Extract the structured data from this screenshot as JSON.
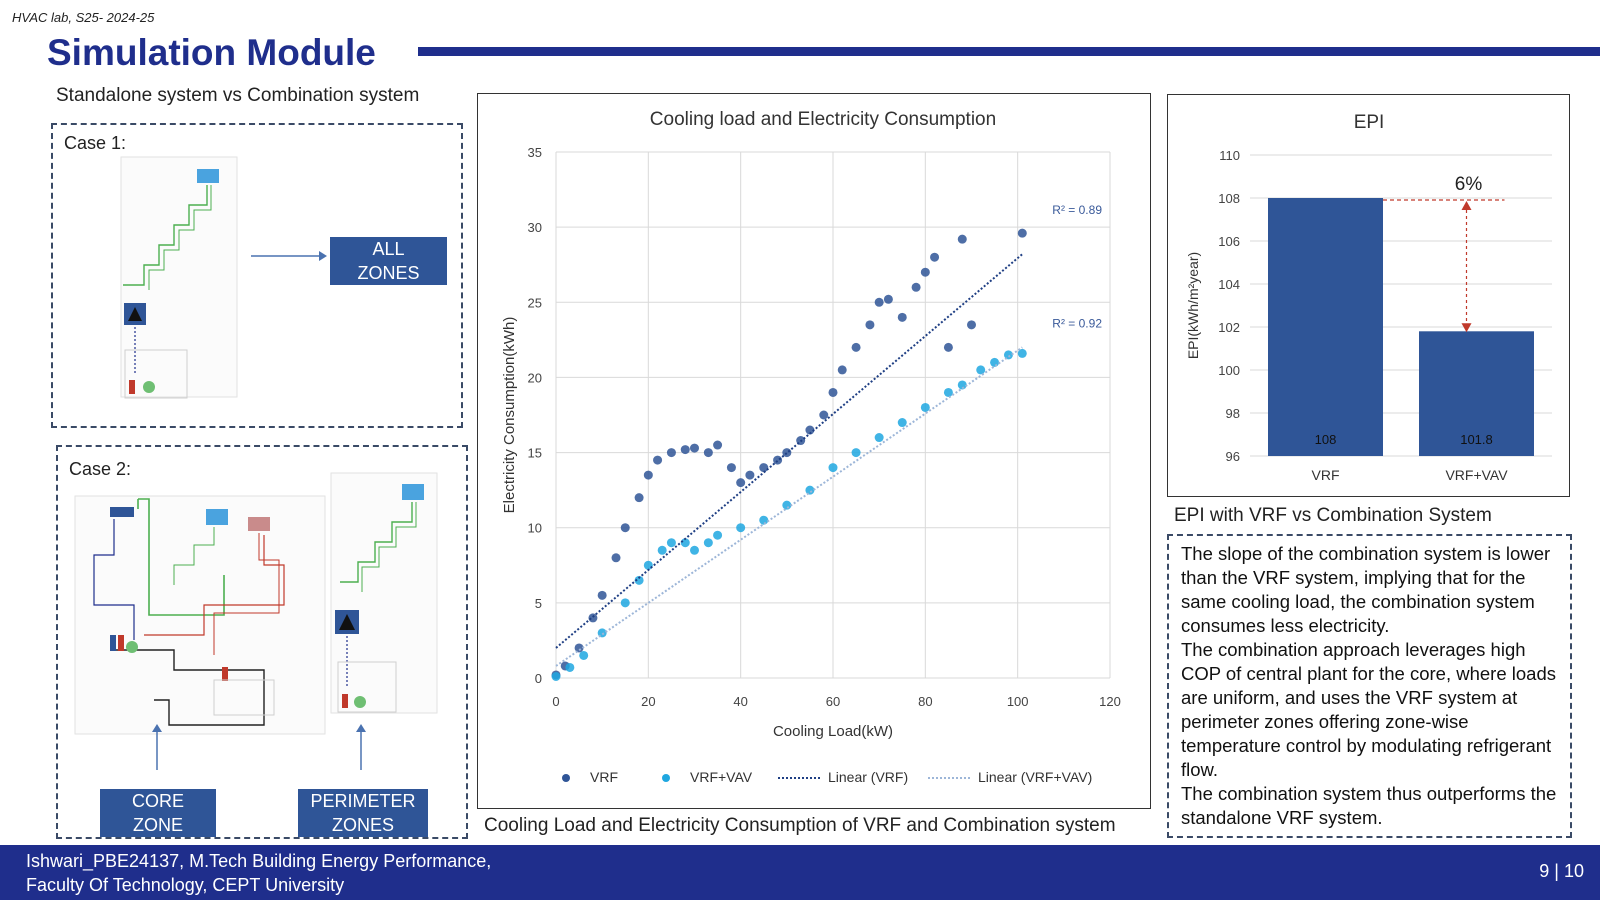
{
  "header": {
    "tag": "HVAC lab, S25- 2024-25",
    "title": "Simulation Module",
    "subtitle": "Standalone system vs Combination system"
  },
  "case1": {
    "label": "Case 1:",
    "zone_box": [
      "ALL",
      "ZONES"
    ]
  },
  "case2": {
    "label": "Case 2:",
    "core_box": [
      "CORE",
      "ZONE"
    ],
    "perimeter_box": [
      "PERIMETER",
      "ZONES"
    ]
  },
  "main_caption": "Cooling Load and Electricity Consumption of VRF and Combination system",
  "epi_caption": "EPI with VRF vs Combination System",
  "explanation": [
    "The slope of the combination system is lower than the VRF system, implying that for the same cooling load, the combination system consumes less electricity.",
    "The combination approach leverages high COP of central plant for the core, where loads are uniform, and uses the VRF system at perimeter zones offering zone-wise temperature control by modulating refrigerant flow.",
    "The combination system thus outperforms the standalone VRF system."
  ],
  "footer": {
    "line1": "Ishwari_PBE24137, M.Tech Building Energy Performance,",
    "line2": "Faculty Of Technology, CEPT University",
    "page": "9 | 10"
  },
  "colors": {
    "brand": "#1f2e8c",
    "vrf": "#2f5597",
    "vrf_vav": "#1fa7e0",
    "box": "#2f5597"
  },
  "chart_data": [
    {
      "type": "scatter",
      "title": "Cooling load and Electricity Consumption",
      "xlabel": "Cooling Load(kW)",
      "ylabel": "Electricity Consumption(kWh)",
      "xlim": [
        0,
        120
      ],
      "ylim": [
        0,
        35
      ],
      "xticks": [
        0,
        20,
        40,
        60,
        80,
        100,
        120
      ],
      "yticks": [
        0,
        5,
        10,
        15,
        20,
        25,
        30,
        35
      ],
      "grid": true,
      "legend": "bottom",
      "series": [
        {
          "name": "VRF",
          "points": [
            [
              0,
              0.2
            ],
            [
              2,
              0.8
            ],
            [
              5,
              2
            ],
            [
              8,
              4
            ],
            [
              10,
              5.5
            ],
            [
              13,
              8
            ],
            [
              15,
              10
            ],
            [
              18,
              12
            ],
            [
              20,
              13.5
            ],
            [
              22,
              14.5
            ],
            [
              25,
              15
            ],
            [
              28,
              15.2
            ],
            [
              30,
              15.3
            ],
            [
              33,
              15
            ],
            [
              35,
              15.5
            ],
            [
              38,
              14
            ],
            [
              40,
              13
            ],
            [
              42,
              13.5
            ],
            [
              45,
              14
            ],
            [
              48,
              14.5
            ],
            [
              50,
              15
            ],
            [
              53,
              15.8
            ],
            [
              55,
              16.5
            ],
            [
              58,
              17.5
            ],
            [
              60,
              19
            ],
            [
              62,
              20.5
            ],
            [
              65,
              22
            ],
            [
              68,
              23.5
            ],
            [
              70,
              25
            ],
            [
              72,
              25.2
            ],
            [
              75,
              24
            ],
            [
              78,
              26
            ],
            [
              80,
              27
            ],
            [
              82,
              28
            ],
            [
              85,
              22
            ],
            [
              88,
              29.2
            ],
            [
              90,
              23.5
            ],
            [
              101,
              29.6
            ]
          ]
        },
        {
          "name": "VRF+VAV",
          "points": [
            [
              0,
              0.1
            ],
            [
              3,
              0.7
            ],
            [
              6,
              1.5
            ],
            [
              10,
              3
            ],
            [
              15,
              5
            ],
            [
              18,
              6.5
            ],
            [
              20,
              7.5
            ],
            [
              23,
              8.5
            ],
            [
              25,
              9
            ],
            [
              28,
              9
            ],
            [
              30,
              8.5
            ],
            [
              33,
              9
            ],
            [
              35,
              9.5
            ],
            [
              40,
              10
            ],
            [
              45,
              10.5
            ],
            [
              50,
              11.5
            ],
            [
              55,
              12.5
            ],
            [
              60,
              14
            ],
            [
              65,
              15
            ],
            [
              70,
              16
            ],
            [
              75,
              17
            ],
            [
              80,
              18
            ],
            [
              85,
              19
            ],
            [
              88,
              19.5
            ],
            [
              92,
              20.5
            ],
            [
              95,
              21
            ],
            [
              98,
              21.5
            ],
            [
              101,
              21.6
            ]
          ]
        }
      ],
      "trendlines": [
        {
          "name": "Linear (VRF)",
          "r2_label": "R² = 0.89",
          "x": [
            0,
            101
          ],
          "y": [
            2.0,
            28.2
          ]
        },
        {
          "name": "Linear (VRF+VAV)",
          "r2_label": "R² = 0.92",
          "x": [
            0,
            101
          ],
          "y": [
            0.8,
            22.0
          ]
        }
      ]
    },
    {
      "type": "bar",
      "title": "EPI",
      "ylabel": "EPI(kWh/m²year)",
      "categories": [
        "VRF",
        "VRF+VAV"
      ],
      "values": [
        108,
        101.8
      ],
      "data_labels": [
        "108",
        "101.8"
      ],
      "ylim": [
        96,
        110
      ],
      "yticks": [
        96,
        98,
        100,
        102,
        104,
        106,
        108,
        110
      ],
      "grid": true,
      "annotation": "6%"
    }
  ]
}
